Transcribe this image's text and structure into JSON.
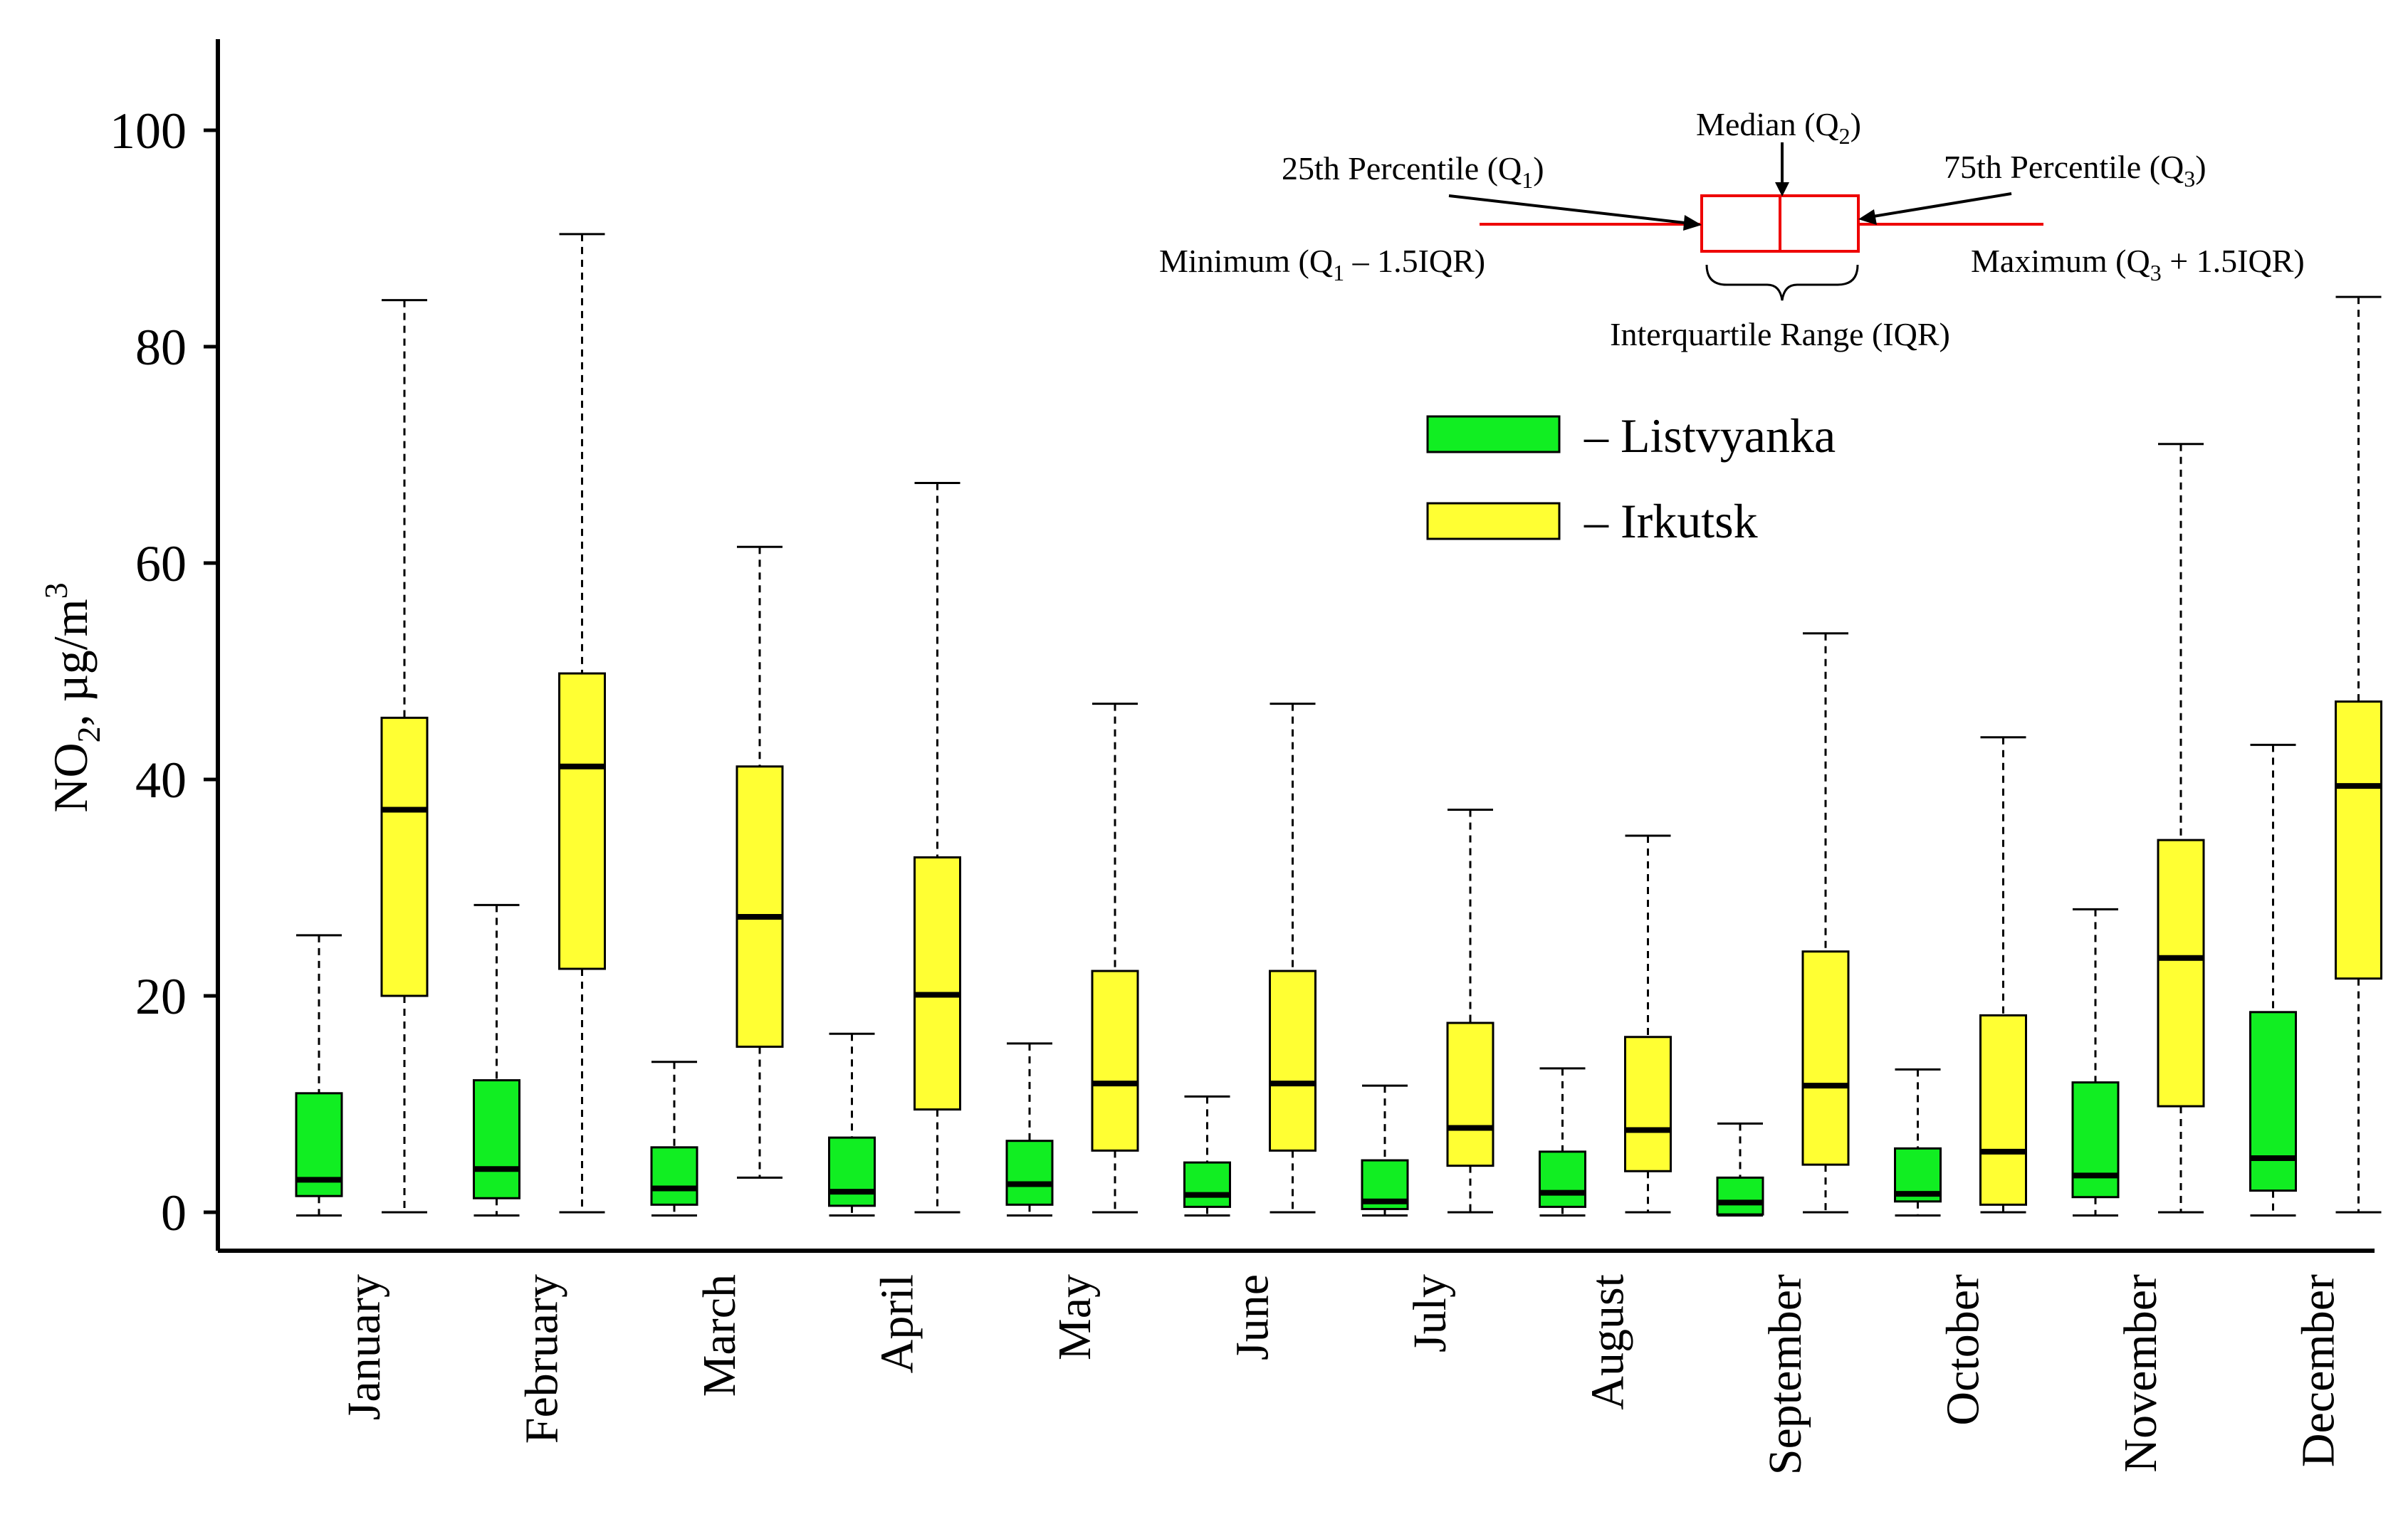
{
  "chart_data": {
    "type": "boxplot",
    "title": "",
    "xlabel": "",
    "ylabel": {
      "base": "NO",
      "sub": "2",
      "rest": ", µg/m",
      "sup": "3"
    },
    "ylim": [
      -4,
      108
    ],
    "yticks": [
      "0",
      "20",
      "40",
      "60",
      "80",
      "100"
    ],
    "categories": [
      "January",
      "February",
      "March",
      "April",
      "May",
      "June",
      "July",
      "August",
      "September",
      "October",
      "November",
      "December"
    ],
    "series": [
      {
        "name": "– Listvyanka",
        "color": "#11ee22",
        "stats": [
          {
            "min": -0.3,
            "q1": 1.5,
            "median": 3.0,
            "q3": 11.0,
            "max": 25.6
          },
          {
            "min": -0.3,
            "q1": 1.3,
            "median": 4.0,
            "q3": 12.2,
            "max": 28.4
          },
          {
            "min": -0.3,
            "q1": 0.7,
            "median": 2.2,
            "q3": 6.0,
            "max": 13.9
          },
          {
            "min": -0.3,
            "q1": 0.6,
            "median": 1.9,
            "q3": 6.9,
            "max": 16.5
          },
          {
            "min": -0.3,
            "q1": 0.7,
            "median": 2.6,
            "q3": 6.6,
            "max": 15.6
          },
          {
            "min": -0.3,
            "q1": 0.5,
            "median": 1.6,
            "q3": 4.6,
            "max": 10.7
          },
          {
            "min": -0.3,
            "q1": 0.3,
            "median": 1.0,
            "q3": 4.8,
            "max": 11.7
          },
          {
            "min": -0.3,
            "q1": 0.5,
            "median": 1.8,
            "q3": 5.6,
            "max": 13.3
          },
          {
            "min": -0.3,
            "q1": -0.2,
            "median": 0.9,
            "q3": 3.2,
            "max": 8.2
          },
          {
            "min": -0.3,
            "q1": 1.0,
            "median": 1.7,
            "q3": 5.9,
            "max": 13.2
          },
          {
            "min": -0.3,
            "q1": 1.4,
            "median": 3.4,
            "q3": 12.0,
            "max": 28.0
          },
          {
            "min": -0.3,
            "q1": 2.0,
            "median": 5.0,
            "q3": 18.5,
            "max": 43.2
          }
        ]
      },
      {
        "name": "– Irkutsk",
        "color": "#ffff33",
        "stats": [
          {
            "min": 0.0,
            "q1": 20.0,
            "median": 37.2,
            "q3": 45.7,
            "max": 84.3
          },
          {
            "min": 0.0,
            "q1": 22.5,
            "median": 41.2,
            "q3": 49.8,
            "max": 90.4
          },
          {
            "min": 3.2,
            "q1": 15.3,
            "median": 27.3,
            "q3": 41.2,
            "max": 61.5
          },
          {
            "min": 0.0,
            "q1": 9.5,
            "median": 20.1,
            "q3": 32.8,
            "max": 67.4
          },
          {
            "min": 0.0,
            "q1": 5.7,
            "median": 11.9,
            "q3": 22.3,
            "max": 47.0
          },
          {
            "min": 0.0,
            "q1": 5.7,
            "median": 11.9,
            "q3": 22.3,
            "max": 47.0
          },
          {
            "min": 0.0,
            "q1": 4.3,
            "median": 7.8,
            "q3": 17.5,
            "max": 37.2
          },
          {
            "min": 0.0,
            "q1": 3.8,
            "median": 7.6,
            "q3": 16.2,
            "max": 34.8
          },
          {
            "min": 0.0,
            "q1": 4.4,
            "median": 11.7,
            "q3": 24.1,
            "max": 53.5
          },
          {
            "min": 0.0,
            "q1": 0.7,
            "median": 5.6,
            "q3": 18.2,
            "max": 43.9
          },
          {
            "min": 0.0,
            "q1": 9.8,
            "median": 23.5,
            "q3": 34.4,
            "max": 71.0
          },
          {
            "min": 0.0,
            "q1": 21.6,
            "median": 39.4,
            "q3": 47.2,
            "max": 84.6
          }
        ]
      }
    ],
    "key_diagram": {
      "median_label": {
        "text": "Median (Q",
        "sub": "2",
        "close": ")"
      },
      "q1_label": {
        "text": "25th Percentile (Q",
        "sub": "1",
        "close": ")"
      },
      "q3_label": {
        "text": "75th Percentile (Q",
        "sub": "3",
        "close": ")"
      },
      "min_label": {
        "text": "Minimum (Q",
        "sub": "1",
        "close": " – 1.5IQR)"
      },
      "max_label": {
        "text": "Maximum (Q",
        "sub": "3",
        "close": " + 1.5IQR)"
      },
      "iqr_label": "Interquartile Range (IQR)",
      "color": "#ee0000"
    }
  }
}
